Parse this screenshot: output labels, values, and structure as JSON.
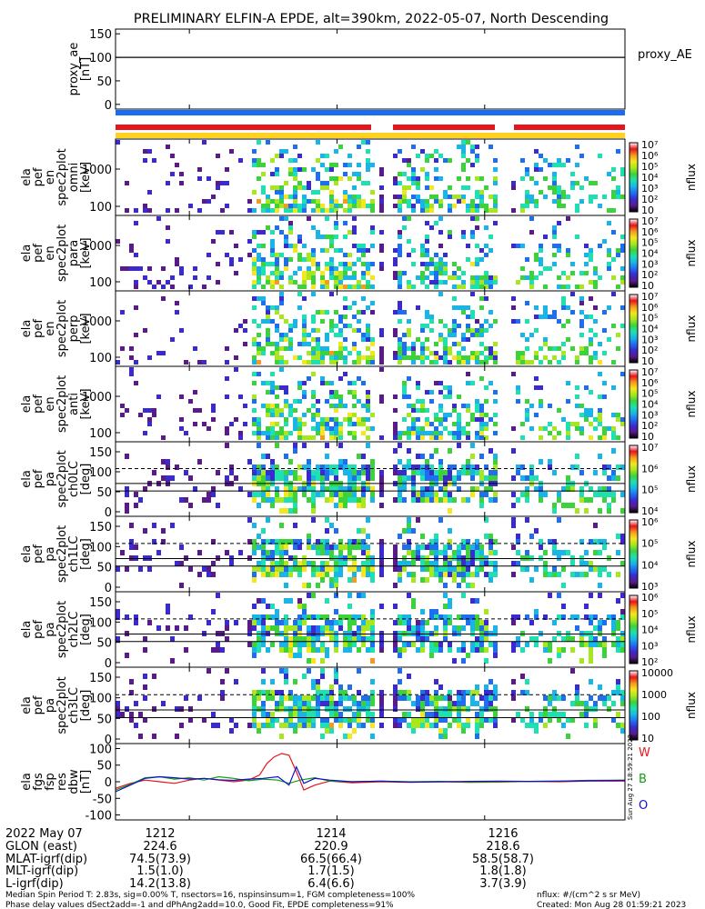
{
  "title": "PRELIMINARY ELFIN-A EPDE, alt=390km, 2022-05-07, North Descending",
  "colors": {
    "science_bar_blue": "#1a6cf0",
    "status_bar_red": "#e8141b",
    "status_bar_yellow": "#ffd21f",
    "trace_w": "#e8141b",
    "trace_b": "#10a010",
    "trace_o": "#1010d0",
    "trace_black": "#000000"
  },
  "chart_data": [
    {
      "type": "line",
      "ylabel_lines": [
        "proxy_ae",
        "[nT]"
      ],
      "yticks": [
        0,
        50,
        100,
        150
      ],
      "ylim": [
        -10,
        160
      ],
      "series": [
        {
          "name": "proxy_AE",
          "x": [
            1211,
            1217.9
          ],
          "y": [
            100,
            100
          ]
        }
      ],
      "right_label": "proxy_AE"
    },
    {
      "type": "heatmap",
      "ylabel_lines": [
        "ela",
        "pef",
        "en",
        "spec2plot",
        "omni",
        "[keV]"
      ],
      "yticks": [
        "100",
        "1000"
      ],
      "colorbar": {
        "label": "nflux",
        "ticks": [
          "10",
          "10²",
          "10³",
          "10⁴",
          "10⁵",
          "10⁶",
          "10⁷"
        ]
      }
    },
    {
      "type": "heatmap",
      "ylabel_lines": [
        "ela",
        "pef",
        "en",
        "spec2plot",
        "para",
        "[keV]"
      ],
      "yticks": [
        "100",
        "1000"
      ],
      "colorbar": {
        "label": "nflux",
        "ticks": [
          "10",
          "10²",
          "10³",
          "10⁴",
          "10⁵",
          "10⁶",
          "10⁷"
        ]
      }
    },
    {
      "type": "heatmap",
      "ylabel_lines": [
        "ela",
        "pef",
        "en",
        "spec2plot",
        "perp",
        "[keV]"
      ],
      "yticks": [
        "100",
        "1000"
      ],
      "colorbar": {
        "label": "nflux",
        "ticks": [
          "10",
          "10²",
          "10³",
          "10⁴",
          "10⁵",
          "10⁶",
          "10⁷"
        ]
      }
    },
    {
      "type": "heatmap",
      "ylabel_lines": [
        "ela",
        "pef",
        "en",
        "spec2plot",
        "anti",
        "[keV]"
      ],
      "yticks": [
        "100",
        "1000"
      ],
      "colorbar": {
        "label": "nflux",
        "ticks": [
          "10",
          "10²",
          "10³",
          "10⁴",
          "10⁵",
          "10⁶",
          "10⁷"
        ]
      }
    },
    {
      "type": "heatmap",
      "ylabel_lines": [
        "ela",
        "pef",
        "pa",
        "spec2plot",
        "ch0LC",
        "[deg]"
      ],
      "yticks": [
        "0",
        "50",
        "100",
        "150"
      ],
      "colorbar": {
        "label": "nflux",
        "ticks": [
          "10⁴",
          "10⁵",
          "10⁶",
          "10⁷"
        ]
      }
    },
    {
      "type": "heatmap",
      "ylabel_lines": [
        "ela",
        "pef",
        "pa",
        "spec2plot",
        "ch1LC",
        "[deg]"
      ],
      "yticks": [
        "0",
        "50",
        "100",
        "150"
      ],
      "colorbar": {
        "label": "nflux",
        "ticks": [
          "10³",
          "10⁴",
          "10⁵",
          "10⁶"
        ]
      }
    },
    {
      "type": "heatmap",
      "ylabel_lines": [
        "ela",
        "pef",
        "pa",
        "spec2plot",
        "ch2LC",
        "[deg]"
      ],
      "yticks": [
        "0",
        "50",
        "100",
        "150"
      ],
      "colorbar": {
        "label": "nflux",
        "ticks": [
          "10²",
          "10³",
          "10⁴",
          "10⁵",
          "10⁶"
        ]
      }
    },
    {
      "type": "heatmap",
      "ylabel_lines": [
        "ela",
        "pef",
        "pa",
        "spec2plot",
        "ch3LC",
        "[deg]"
      ],
      "yticks": [
        "0",
        "50",
        "100",
        "150"
      ],
      "colorbar": {
        "label": "nflux",
        "ticks": [
          "10",
          "100",
          "1000",
          "10000"
        ]
      }
    },
    {
      "type": "line",
      "ylabel_lines": [
        "ela",
        "fgs",
        "fsp",
        "res",
        "dbw",
        "[nT]"
      ],
      "yticks": [
        -100,
        -50,
        0,
        50,
        100
      ],
      "ylim": [
        -115,
        115
      ],
      "series": [
        {
          "name": "W",
          "x": [
            1211.0,
            1211.2,
            1211.4,
            1211.6,
            1211.8,
            1212.0,
            1212.2,
            1212.4,
            1212.6,
            1212.8,
            1212.95,
            1213.05,
            1213.15,
            1213.25,
            1213.35,
            1213.45,
            1213.55,
            1213.7,
            1213.9,
            1214.2,
            1214.6,
            1215.0,
            1215.4,
            1215.8,
            1216.2,
            1216.6,
            1217.0,
            1217.4,
            1217.9
          ],
          "y": [
            -20,
            -5,
            5,
            0,
            -5,
            5,
            10,
            5,
            0,
            5,
            20,
            55,
            75,
            85,
            80,
            30,
            -25,
            -10,
            2,
            -3,
            0,
            -2,
            0,
            -2,
            -1,
            1,
            0,
            2,
            2
          ]
        },
        {
          "name": "B",
          "x": [
            1211.0,
            1211.2,
            1211.4,
            1211.6,
            1211.8,
            1212.0,
            1212.2,
            1212.4,
            1212.6,
            1212.8,
            1213.0,
            1213.2,
            1213.35,
            1213.5,
            1213.7,
            1213.9,
            1214.2,
            1214.6,
            1215.0,
            1215.4,
            1215.8,
            1216.2,
            1216.6,
            1217.0,
            1217.4,
            1217.9
          ],
          "y": [
            -25,
            -8,
            12,
            15,
            8,
            12,
            5,
            15,
            10,
            3,
            8,
            5,
            -5,
            5,
            12,
            2,
            0,
            2,
            0,
            1,
            -1,
            0,
            1,
            2,
            4,
            5
          ]
        },
        {
          "name": "O",
          "x": [
            1211.0,
            1211.2,
            1211.4,
            1211.6,
            1211.8,
            1212.0,
            1212.2,
            1212.4,
            1212.6,
            1212.8,
            1213.0,
            1213.2,
            1213.35,
            1213.45,
            1213.55,
            1213.7,
            1213.9,
            1214.2,
            1214.6,
            1215.0,
            1215.4,
            1215.8,
            1216.2,
            1216.6,
            1217.0,
            1217.4,
            1217.9
          ],
          "y": [
            -30,
            -10,
            10,
            15,
            12,
            8,
            10,
            6,
            4,
            8,
            10,
            15,
            -10,
            45,
            -5,
            10,
            5,
            0,
            2,
            -1,
            0,
            1,
            2,
            1,
            2,
            3,
            4
          ]
        }
      ],
      "right_labels": [
        "W",
        "B",
        "O"
      ]
    }
  ],
  "time_axis": {
    "xlim": [
      1211,
      1217.9
    ],
    "tick_values": [
      1212,
      1214,
      1216
    ],
    "tick_labels": [
      "1212",
      "1214",
      "1216"
    ]
  },
  "ephemeris": {
    "rows": [
      {
        "label": "2022 May 07",
        "values": [
          "1212",
          "1214",
          "1216"
        ]
      },
      {
        "label": "GLON (east)",
        "values": [
          "224.6",
          "220.9",
          "218.6"
        ]
      },
      {
        "label": "MLAT-igrf(dip)",
        "values": [
          "74.5(73.9)",
          "66.5(66.4)",
          "58.5(58.7)"
        ]
      },
      {
        "label": "MLT-igrf(dip)",
        "values": [
          "1.5(1.0)",
          "1.7(1.5)",
          "1.8(1.8)"
        ]
      },
      {
        "label": "L-igrf(dip)",
        "values": [
          "14.2(13.8)",
          "6.4(6.6)",
          "3.7(3.9)"
        ]
      }
    ]
  },
  "footer": {
    "line1": "Median Spin Period T: 2.83s, sig=0.00% T, nsectors=16, nspinsinsum=1, FGM completeness=100%",
    "line2": "Phase delay values dSect2add=-1 and dPhAng2add=10.0, Good Fit, EPDE completeness=91%",
    "units": "nflux: #/(cm^2 s sr MeV)",
    "created": "Created: Mon Aug 28 01:59:21 2023"
  },
  "side_stamp": "Sun Aug 27 18:59:21 2023"
}
